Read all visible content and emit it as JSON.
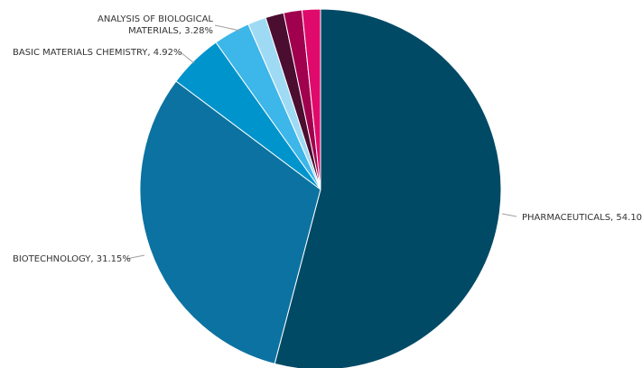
{
  "chart_data": {
    "type": "pie",
    "slices": [
      {
        "label": "PHARMACEUTICALS, 54.10%",
        "name": "PHARMACEUTICALS",
        "value": 54.1,
        "color": "#004a66"
      },
      {
        "label": "BIOTECHNOLOGY, 31.15%",
        "name": "BIOTECHNOLOGY",
        "value": 31.15,
        "color": "#0c72a1"
      },
      {
        "label": "BASIC MATERIALS CHEMISTRY, 4.92%",
        "name": "BASIC MATERIALS CHEMISTRY",
        "value": 4.92,
        "color": "#0094cc"
      },
      {
        "label_lines": [
          "ANALYSIS OF BIOLOGICAL",
          "MATERIALS, 3.28%"
        ],
        "name": "ANALYSIS OF BIOLOGICAL MATERIALS",
        "value": 3.28,
        "color": "#3db6ea"
      },
      {
        "label": "",
        "value": 1.64,
        "color": "#9fdaf5"
      },
      {
        "label": "",
        "value": 1.64,
        "color": "#4b0d30"
      },
      {
        "label": "",
        "value": 1.64,
        "color": "#a0004e"
      },
      {
        "label": "",
        "value": 1.64,
        "color": "#e00a6c"
      }
    ]
  }
}
